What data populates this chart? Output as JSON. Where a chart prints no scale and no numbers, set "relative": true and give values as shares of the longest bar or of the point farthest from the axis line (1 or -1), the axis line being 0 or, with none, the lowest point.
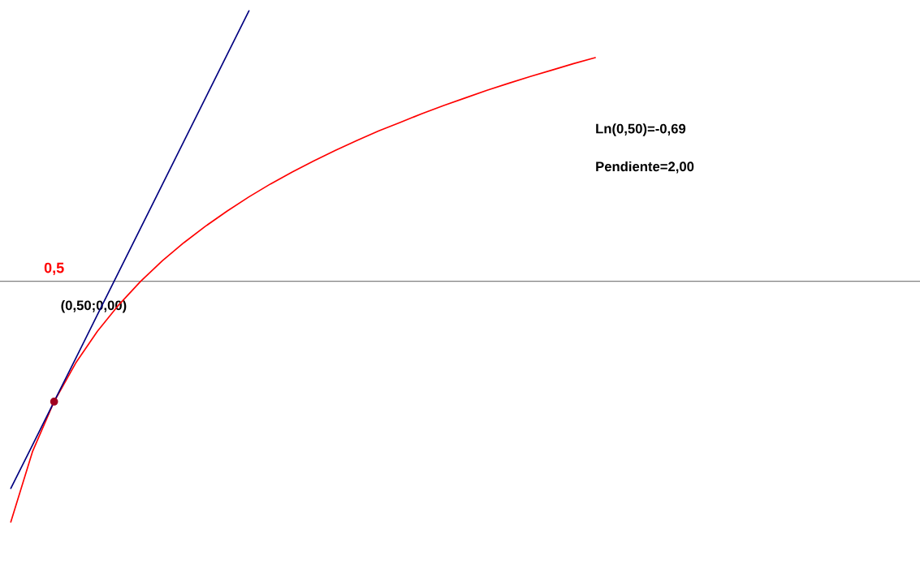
{
  "chart_data": {
    "type": "line",
    "relative": true,
    "categories": [
      null,
      null,
      null,
      null,
      null,
      null,
      null,
      null,
      null,
      null,
      null,
      null,
      null,
      null,
      null,
      null,
      null,
      null,
      null,
      null,
      null,
      null,
      null,
      null,
      null,
      null,
      null,
      null
    ],
    "series": [
      {
        "color": "#ff0000",
        "values": [
          -0.89,
          -0.63,
          -0.445,
          -0.302,
          -0.185,
          -0.086,
          0,
          0.076,
          0.143,
          0.204,
          0.26,
          0.312,
          0.36,
          0.404,
          0.445,
          0.484,
          0.521,
          0.556,
          0.588,
          0.62,
          0.65,
          0.678,
          0.706,
          0.732,
          0.757,
          0.781,
          0.805,
          0.827
        ]
      },
      {
        "color": "#000080",
        "values": [
          -0.766,
          -0.606,
          -0.445,
          -0.285,
          -0.124,
          0.037,
          0.197,
          0.358,
          0.518,
          0.679,
          0.839,
          1.0,
          null,
          null,
          null,
          null,
          null,
          null,
          null,
          null,
          null,
          null,
          null,
          null,
          null,
          null,
          null,
          null
        ]
      }
    ],
    "annotations": [
      "0,5",
      "(0,50;0,00)",
      "Ln(0,50)=-0,69",
      "Pendiente=2,00"
    ],
    "grid": false,
    "legend": false
  }
}
